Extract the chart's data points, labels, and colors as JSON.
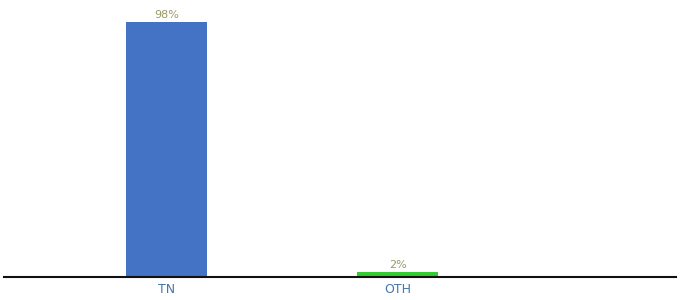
{
  "categories": [
    "TN",
    "OTH"
  ],
  "values": [
    98,
    2
  ],
  "bar_colors": [
    "#4472c4",
    "#33cc33"
  ],
  "label_texts": [
    "98%",
    "2%"
  ],
  "label_color": "#999966",
  "ylim": [
    0,
    105
  ],
  "background_color": "#ffffff",
  "bar_width": 0.35,
  "label_fontsize": 8,
  "tick_fontsize": 9,
  "axis_line_color": "#111111",
  "x_positions": [
    1,
    2
  ],
  "xlim": [
    0.3,
    3.2
  ]
}
